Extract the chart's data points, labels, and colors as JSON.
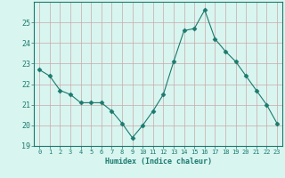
{
  "x": [
    0,
    1,
    2,
    3,
    4,
    5,
    6,
    7,
    8,
    9,
    10,
    11,
    12,
    13,
    14,
    15,
    16,
    17,
    18,
    19,
    20,
    21,
    22,
    23
  ],
  "y": [
    22.7,
    22.4,
    21.7,
    21.5,
    21.1,
    21.1,
    21.1,
    20.7,
    20.1,
    19.4,
    20.0,
    20.7,
    21.5,
    23.1,
    24.6,
    24.7,
    25.6,
    24.2,
    23.6,
    23.1,
    22.4,
    21.7,
    21.0,
    20.1
  ],
  "xlabel": "Humidex (Indice chaleur)",
  "ylim": [
    19,
    26
  ],
  "yticks": [
    19,
    20,
    21,
    22,
    23,
    24,
    25
  ],
  "xticks": [
    0,
    1,
    2,
    3,
    4,
    5,
    6,
    7,
    8,
    9,
    10,
    11,
    12,
    13,
    14,
    15,
    16,
    17,
    18,
    19,
    20,
    21,
    22,
    23
  ],
  "line_color": "#1a7a6e",
  "marker": "D",
  "marker_size": 2.5,
  "bg_color": "#d9f5f0",
  "grid_color": "#c8a8a8",
  "label_color": "#1a7a6e",
  "tick_color": "#1a7a6e",
  "spine_color": "#1a7a6e"
}
